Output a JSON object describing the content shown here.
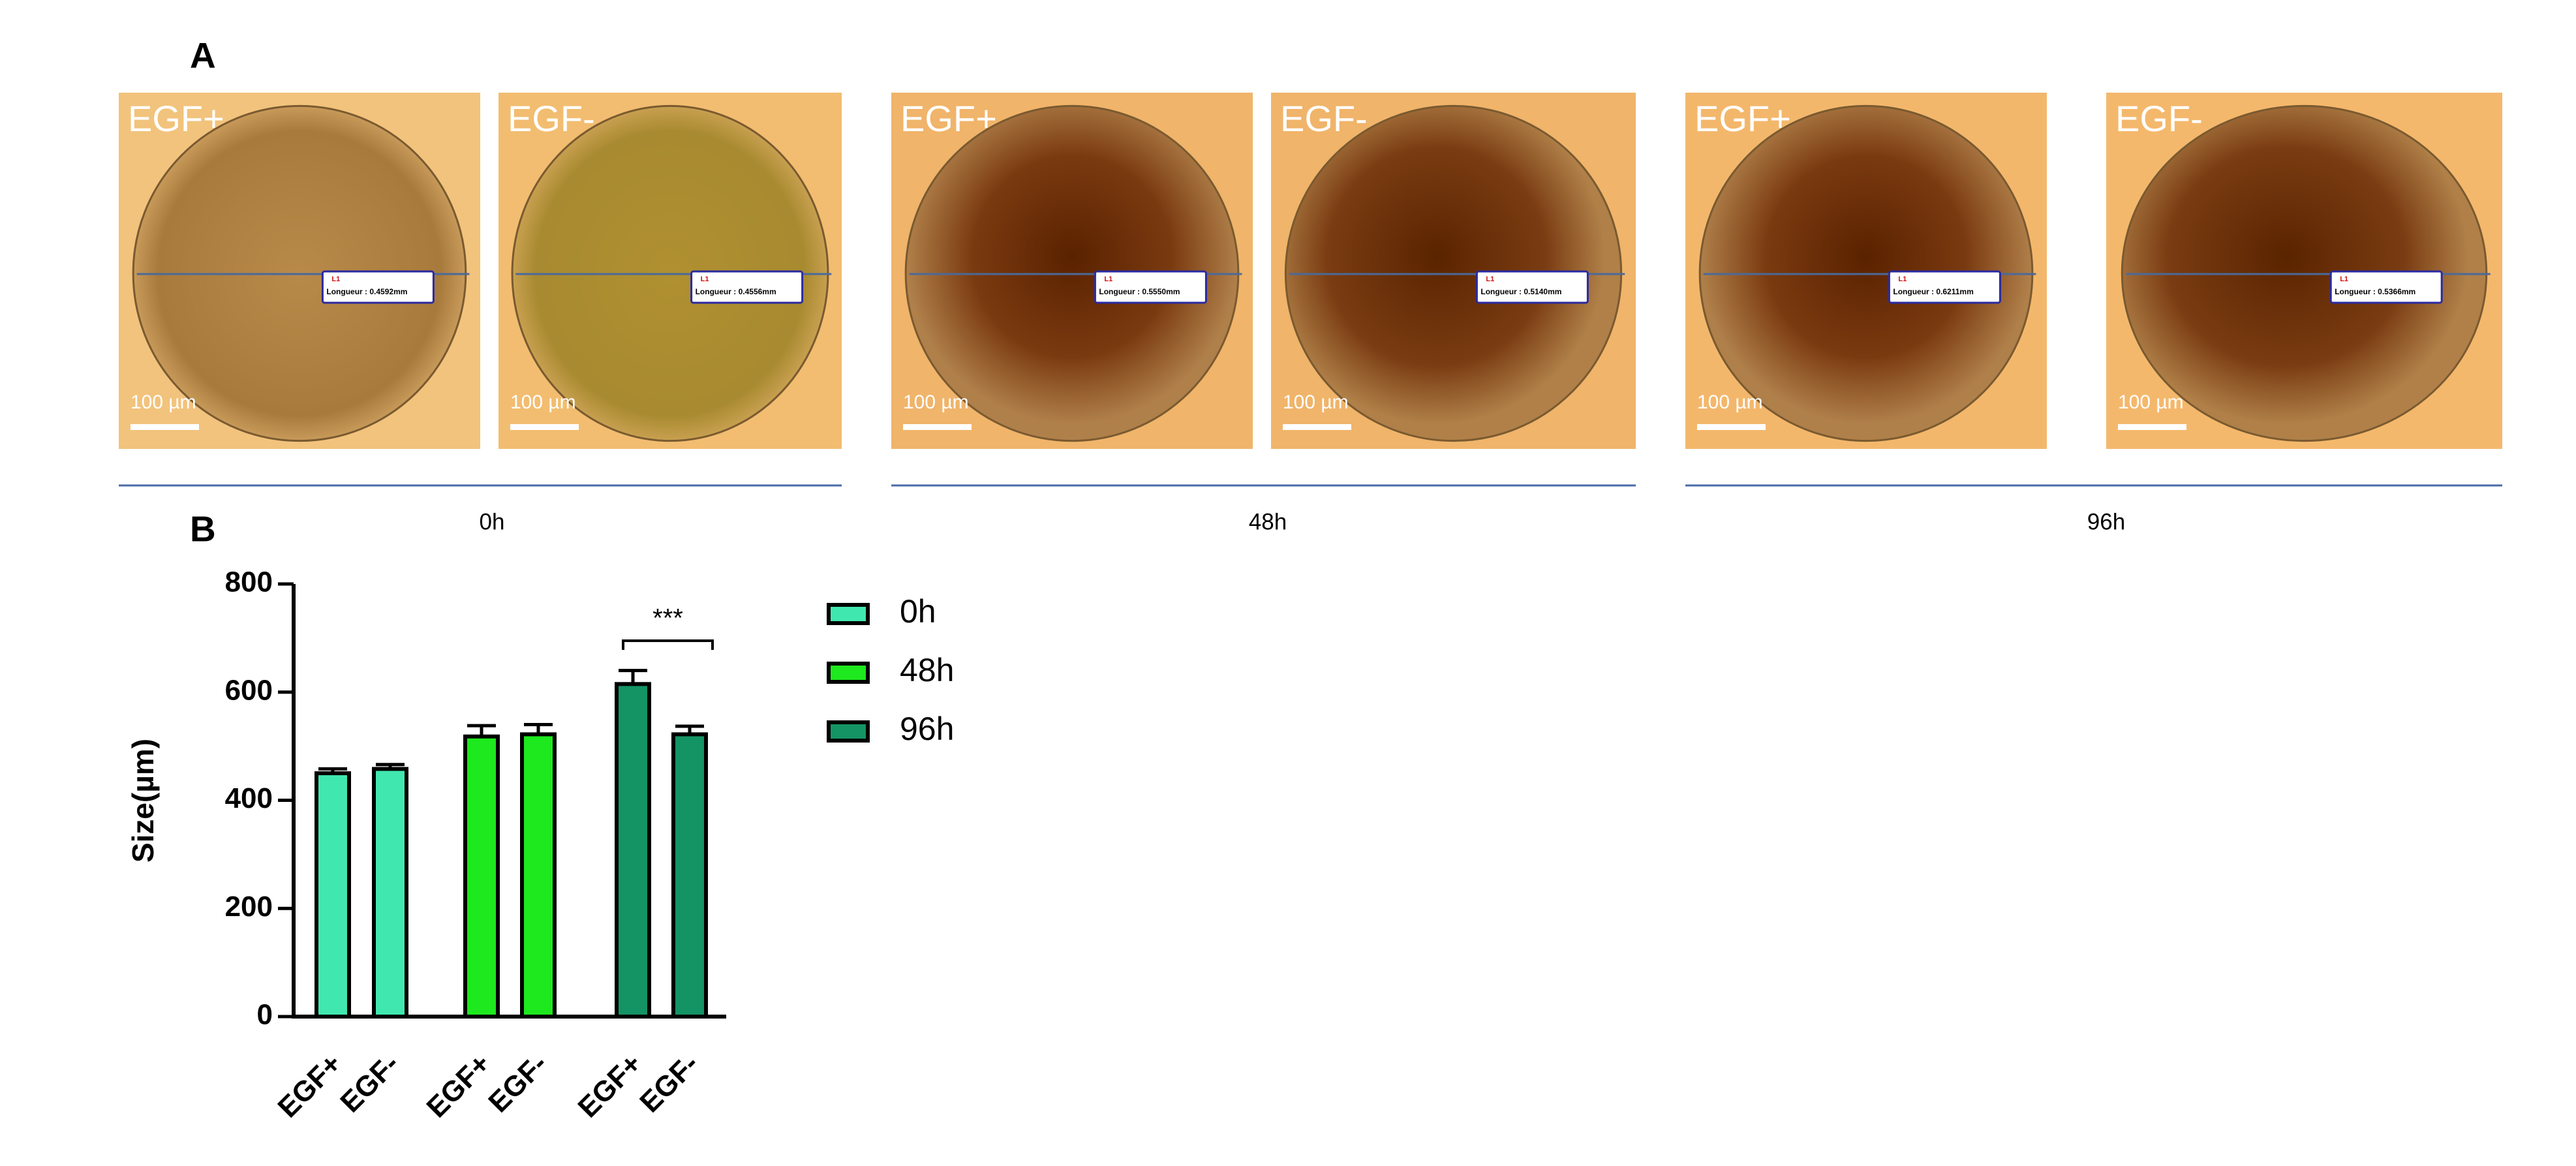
{
  "panel_a": {
    "label": "A",
    "timepoints": [
      "0h",
      "48h",
      "96h"
    ],
    "images": [
      {
        "condition": "EGF+",
        "scale": "100 µm",
        "marker": "L1",
        "measurement": "Longueur : 0.4592mm"
      },
      {
        "condition": "EGF-",
        "scale": "100 µm",
        "marker": "L1",
        "measurement": "Longueur : 0.4556mm"
      },
      {
        "condition": "EGF+",
        "scale": "100 µm",
        "marker": "L1",
        "measurement": "Longueur : 0.5550mm"
      },
      {
        "condition": "EGF-",
        "scale": "100 µm",
        "marker": "L1",
        "measurement": "Longueur : 0.5140mm"
      },
      {
        "condition": "EGF+",
        "scale": "100 µm",
        "marker": "L1",
        "measurement": "Longueur : 0.6211mm"
      },
      {
        "condition": "EGF-",
        "scale": "100 µm",
        "marker": "L1",
        "measurement": "Longueur : 0.5366mm"
      }
    ]
  },
  "chart_data": {
    "type": "bar",
    "panel_label": "B",
    "y_label": "Size(µm)",
    "categories": [
      "EGF+",
      "EGF-"
    ],
    "series": [
      {
        "name": "0h",
        "color": "#40e8b0",
        "values": [
          450,
          458
        ],
        "errors": [
          8,
          8
        ]
      },
      {
        "name": "48h",
        "color": "#1ee81e",
        "values": [
          518,
          522
        ],
        "errors": [
          20,
          18
        ]
      },
      {
        "name": "96h",
        "color": "#149464",
        "values": [
          615,
          522
        ],
        "errors": [
          25,
          15
        ]
      }
    ],
    "ylim": [
      0,
      800
    ],
    "yticks": [
      0,
      200,
      400,
      600,
      800
    ],
    "annotations": [
      "***"
    ]
  }
}
